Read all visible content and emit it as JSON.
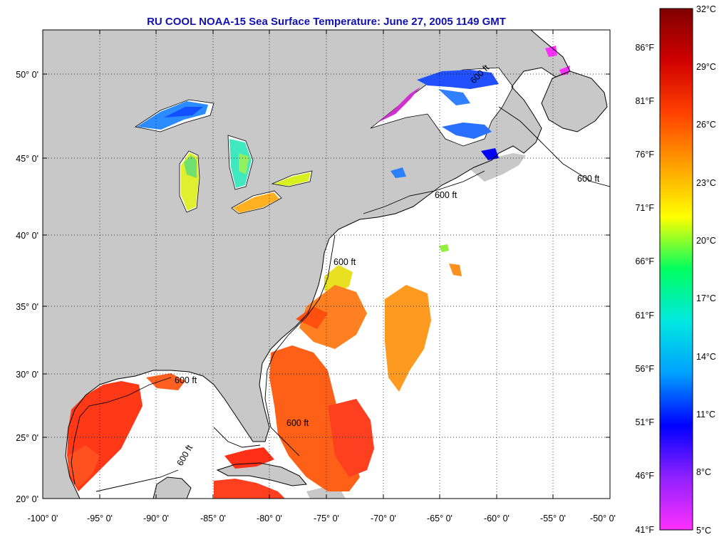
{
  "title": "RU COOL  NOAA-15  Sea Surface Temperature:  June 27, 2005 1149 GMT",
  "map": {
    "lon_range": [
      -100,
      -50
    ],
    "lat_range": [
      20,
      52.5
    ],
    "lon_ticks": [
      "-100° 0'",
      "-95° 0'",
      "-90° 0'",
      "-85° 0'",
      "-80° 0'",
      "-75° 0'",
      "-70° 0'",
      "-65° 0'",
      "-60° 0'",
      "-55° 0'",
      "-50° 0'"
    ],
    "lat_ticks": [
      "50° 0'",
      "45° 0'",
      "40° 0'",
      "35° 0'",
      "30° 0'",
      "25° 0'",
      "20° 0'"
    ],
    "contour_labels": [
      "600 ft",
      "600 ft",
      "600 ft",
      "600 ft",
      "600 ft",
      "600 ft",
      "600 ft"
    ],
    "colors": {
      "land": "#c8c8c8",
      "ocean_no_data": "#ffffff",
      "coast": "#000000",
      "grid": "#000000"
    }
  },
  "colorbar": {
    "range_celsius": [
      5,
      32
    ],
    "celsius_labels": [
      "32°C",
      "29°C",
      "26°C",
      "23°C",
      "20°C",
      "17°C",
      "14°C",
      "11°C",
      "8°C",
      "5°C"
    ],
    "fahrenheit_labels": [
      "86°F",
      "81°F",
      "76°F",
      "71°F",
      "66°F",
      "61°F",
      "56°F",
      "51°F",
      "46°F",
      "41°F"
    ],
    "color_stops": [
      "#ff30ff",
      "#9020ff",
      "#0000ff",
      "#00a0ff",
      "#00e8e0",
      "#00ff60",
      "#ffff00",
      "#ffa000",
      "#ff4000",
      "#d00000",
      "#800000"
    ]
  }
}
